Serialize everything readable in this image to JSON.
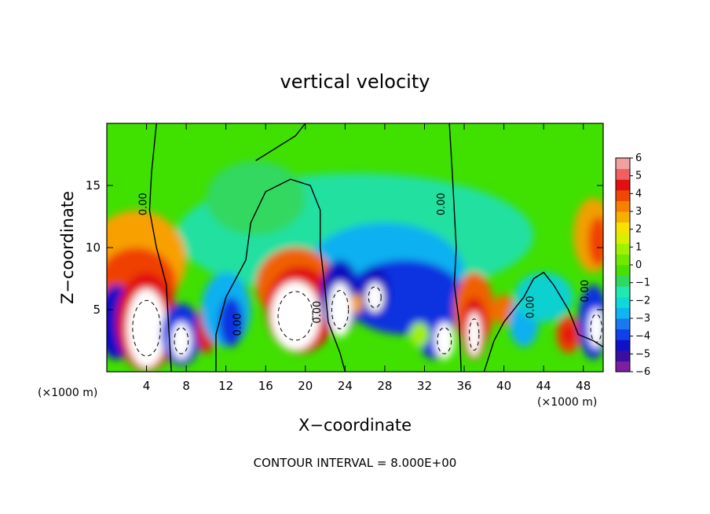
{
  "chart_data": {
    "type": "heatmap",
    "title": "vertical velocity",
    "xlabel": "X−coordinate",
    "ylabel": "Z−coordinate",
    "x_unit_left": "(×1000 m)",
    "x_unit_right": "(×1000 m)",
    "xlim": [
      0,
      50
    ],
    "ylim": [
      0,
      20
    ],
    "x_ticks": [
      "4",
      "8",
      "12",
      "16",
      "20",
      "24",
      "28",
      "32",
      "36",
      "40",
      "44",
      "48"
    ],
    "y_ticks": [
      "5",
      "10",
      "15"
    ],
    "colorbar": {
      "levels": [
        "6",
        "5",
        "4",
        "3",
        "2",
        "1",
        "0",
        "−1",
        "−2",
        "−3",
        "−4",
        "−5",
        "−6"
      ],
      "min": -6,
      "max": 6,
      "colors": [
        "#7a1fa0",
        "#3a0fa0",
        "#1010c8",
        "#1040e8",
        "#1a78f0",
        "#10b4f0",
        "#10d8d8",
        "#20e8b0",
        "#30d860",
        "#48e000",
        "#70e800",
        "#a0f000",
        "#d8f000",
        "#f8e000",
        "#f8b000",
        "#f88000",
        "#f04800",
        "#e01010",
        "#f06060",
        "#f0a0a0"
      ]
    },
    "contour_labels": [
      "0.00",
      "0.00",
      "0.00",
      "0.00",
      "0.00",
      "0.00"
    ],
    "annotation": "CONTOUR INTERVAL = 8.000E+00"
  }
}
